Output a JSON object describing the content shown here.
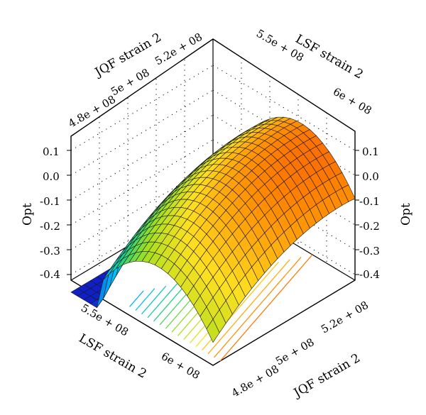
{
  "chart_data": {
    "type": "surface3d",
    "zlabel": "Opt",
    "zlim": [
      -0.45,
      0.15
    ],
    "z_ticks": [
      "0.1",
      "0.0",
      "-0.1",
      "-0.2",
      "-0.3",
      "-0.4"
    ],
    "lsf_label": "LSF strain 2",
    "lsf_ticks": [
      "5.5e + 08",
      "6e + 08"
    ],
    "jqf_label": "JQF strain 2",
    "jqf_ticks": [
      "4.8e + 08",
      "5e + 08",
      "5.2e + 08"
    ],
    "surface_peak_opt": 0.14,
    "colormap": [
      "#1020c8",
      "#00c0ff",
      "#20d080",
      "#a0e020",
      "#ffe020",
      "#ff8000",
      "#e81818"
    ],
    "contour_lines": 16,
    "grid": true
  }
}
